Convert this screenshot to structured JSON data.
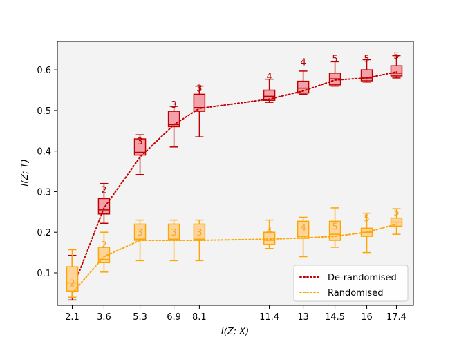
{
  "chart_data": {
    "type": "box",
    "title": "",
    "xlabel": "I(Z; X)",
    "ylabel": "I(Z; T)",
    "ylim": [
      0.02,
      0.67
    ],
    "yticks": [
      0.1,
      0.2,
      0.3,
      0.4,
      0.5,
      0.6
    ],
    "x_tick_labels": [
      "2.1",
      "3.6",
      "5.3",
      "6.9",
      "8.1",
      "11.4",
      "13",
      "14.5",
      "16",
      "17.4"
    ],
    "x_positions": [
      2.1,
      3.6,
      5.3,
      6.9,
      8.1,
      11.4,
      13,
      14.5,
      16,
      17.4
    ],
    "xlim": [
      1.4,
      18.2
    ],
    "legend_position": "lower-right",
    "series": [
      {
        "name": "De-randomised",
        "line_color": "#c00000",
        "box_fill": "#f4a0a8",
        "annotation_color": "#b00000",
        "boxes": [
          {
            "x": 2.1,
            "whisker_low": 0.033,
            "q1": 0.055,
            "median": 0.063,
            "q3": 0.075,
            "whisker_high": 0.143,
            "label": "2",
            "label_y": 0.095
          },
          {
            "x": 3.6,
            "whisker_low": 0.222,
            "q1": 0.245,
            "median": 0.255,
            "q3": 0.283,
            "whisker_high": 0.32,
            "label": "2",
            "label_y": 0.305
          },
          {
            "x": 5.3,
            "whisker_low": 0.342,
            "q1": 0.39,
            "median": 0.397,
            "q3": 0.43,
            "whisker_high": 0.44,
            "label": "3",
            "label_y": 0.425
          },
          {
            "x": 6.9,
            "whisker_low": 0.41,
            "q1": 0.46,
            "median": 0.465,
            "q3": 0.498,
            "whisker_high": 0.51,
            "label": "3",
            "label_y": 0.515
          },
          {
            "x": 8.1,
            "whisker_low": 0.435,
            "q1": 0.498,
            "median": 0.507,
            "q3": 0.54,
            "whisker_high": 0.56,
            "label": "3",
            "label_y": 0.555
          },
          {
            "x": 11.4,
            "whisker_low": 0.52,
            "q1": 0.525,
            "median": 0.535,
            "q3": 0.55,
            "whisker_high": 0.577,
            "label": "4",
            "label_y": 0.585
          },
          {
            "x": 13,
            "whisker_low": 0.54,
            "q1": 0.543,
            "median": 0.555,
            "q3": 0.572,
            "whisker_high": 0.597,
            "label": "4",
            "label_y": 0.62
          },
          {
            "x": 14.5,
            "whisker_low": 0.56,
            "q1": 0.563,
            "median": 0.578,
            "q3": 0.592,
            "whisker_high": 0.62,
            "label": "5",
            "label_y": 0.628
          },
          {
            "x": 16,
            "whisker_low": 0.57,
            "q1": 0.573,
            "median": 0.58,
            "q3": 0.6,
            "whisker_high": 0.625,
            "label": "5",
            "label_y": 0.628
          },
          {
            "x": 17.4,
            "whisker_low": 0.58,
            "q1": 0.585,
            "median": 0.592,
            "q3": 0.61,
            "whisker_high": 0.635,
            "label": "5",
            "label_y": 0.636
          }
        ],
        "trend": [
          0.058,
          0.26,
          0.385,
          0.465,
          0.505,
          0.528,
          0.548,
          0.575,
          0.58,
          0.595
        ]
      },
      {
        "name": "Randomised",
        "line_color": "#ffa500",
        "box_fill": "#fdd59a",
        "annotation_color": "#f5a623",
        "boxes": [
          {
            "x": 2.1,
            "whisker_low": 0.04,
            "q1": 0.055,
            "median": 0.075,
            "q3": 0.115,
            "whisker_high": 0.157,
            "label": "2",
            "label_y": 0.075
          },
          {
            "x": 3.6,
            "whisker_low": 0.102,
            "q1": 0.125,
            "median": 0.133,
            "q3": 0.163,
            "whisker_high": 0.2,
            "label": "2",
            "label_y": 0.17
          },
          {
            "x": 5.3,
            "whisker_low": 0.13,
            "q1": 0.18,
            "median": 0.183,
            "q3": 0.22,
            "whisker_high": 0.23,
            "label": "3",
            "label_y": 0.2
          },
          {
            "x": 6.9,
            "whisker_low": 0.13,
            "q1": 0.18,
            "median": 0.183,
            "q3": 0.22,
            "whisker_high": 0.23,
            "label": "3",
            "label_y": 0.2
          },
          {
            "x": 8.1,
            "whisker_low": 0.13,
            "q1": 0.18,
            "median": 0.183,
            "q3": 0.22,
            "whisker_high": 0.23,
            "label": "3",
            "label_y": 0.2
          },
          {
            "x": 11.4,
            "whisker_low": 0.16,
            "q1": 0.17,
            "median": 0.18,
            "q3": 0.2,
            "whisker_high": 0.23,
            "label": "4",
            "label_y": 0.205
          },
          {
            "x": 13,
            "whisker_low": 0.14,
            "q1": 0.185,
            "median": 0.19,
            "q3": 0.227,
            "whisker_high": 0.237,
            "label": "4",
            "label_y": 0.212
          },
          {
            "x": 14.5,
            "whisker_low": 0.163,
            "q1": 0.18,
            "median": 0.195,
            "q3": 0.227,
            "whisker_high": 0.26,
            "label": "5",
            "label_y": 0.215
          },
          {
            "x": 16,
            "whisker_low": 0.15,
            "q1": 0.19,
            "median": 0.2,
            "q3": 0.21,
            "whisker_high": 0.247,
            "label": "5",
            "label_y": 0.235
          },
          {
            "x": 17.4,
            "whisker_low": 0.195,
            "q1": 0.215,
            "median": 0.225,
            "q3": 0.235,
            "whisker_high": 0.258,
            "label": "5",
            "label_y": 0.25
          }
        ],
        "trend": [
          0.05,
          0.14,
          0.18,
          0.18,
          0.18,
          0.183,
          0.186,
          0.19,
          0.2,
          0.22
        ]
      }
    ]
  }
}
